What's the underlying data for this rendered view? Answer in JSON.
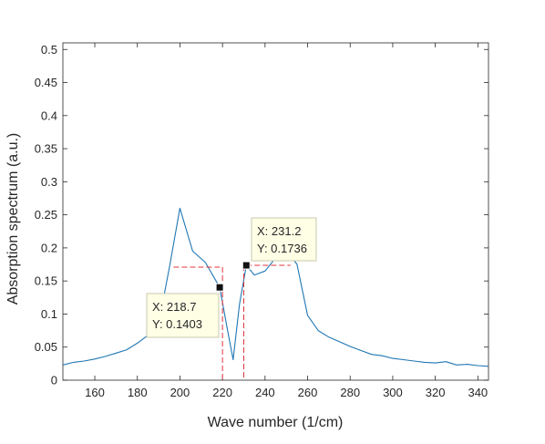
{
  "colors": {
    "line": "#1f77b4",
    "marker_fill": "#111111",
    "guide": "#e0343a",
    "datatip_bg": "#ffffe6",
    "axis": "#262626"
  },
  "chart_data": {
    "type": "line",
    "xlabel": "Wave number (1/cm)",
    "ylabel": "Absorption spectrum (a.u.)",
    "xlim": [
      145,
      345
    ],
    "ylim": [
      0,
      0.51
    ],
    "grid": false,
    "xticks": [
      160,
      180,
      200,
      220,
      240,
      260,
      280,
      300,
      320,
      340
    ],
    "yticks": [
      0,
      0.05,
      0.1,
      0.15,
      0.2,
      0.25,
      0.3,
      0.35,
      0.4,
      0.45,
      0.5
    ],
    "xtick_labels": [
      "160",
      "180",
      "200",
      "220",
      "240",
      "260",
      "280",
      "300",
      "320",
      "340"
    ],
    "ytick_labels": [
      "0",
      "0.05",
      "0.1",
      "0.15",
      "0.2",
      "0.25",
      "0.3",
      "0.35",
      "0.4",
      "0.45",
      "0.5"
    ],
    "series": [
      {
        "x": [
          145,
          150,
          155,
          160,
          165,
          170,
          175,
          180,
          185,
          190,
          195,
          200,
          206,
          212,
          218.7,
          222,
          225,
          228,
          231.2,
          235,
          240,
          245,
          250,
          255,
          260,
          265,
          270,
          275,
          280,
          285,
          290,
          295,
          300,
          305,
          310,
          315,
          320,
          325,
          330,
          335,
          340,
          345
        ],
        "y": [
          0.023,
          0.027,
          0.029,
          0.032,
          0.036,
          0.041,
          0.046,
          0.056,
          0.068,
          0.086,
          0.17,
          0.26,
          0.195,
          0.178,
          0.1403,
          0.082,
          0.031,
          0.115,
          0.1736,
          0.159,
          0.165,
          0.185,
          0.197,
          0.175,
          0.098,
          0.075,
          0.065,
          0.058,
          0.051,
          0.045,
          0.039,
          0.037,
          0.033,
          0.031,
          0.029,
          0.027,
          0.026,
          0.028,
          0.023,
          0.024,
          0.022,
          0.021
        ]
      }
    ],
    "annotations": [
      {
        "x": 218.7,
        "y": 0.1403,
        "x_text": "X: 218.7",
        "y_text": "Y: 0.1403",
        "guide_h": [
          197,
          218.7
        ],
        "guide_y": 0.171,
        "guide_v_x": 220
      },
      {
        "x": 231.2,
        "y": 0.1736,
        "x_text": "X: 231.2",
        "y_text": "Y: 0.1736",
        "guide_h": [
          231.2,
          252
        ],
        "guide_y": 0.1736,
        "guide_v_x": 230
      }
    ]
  }
}
